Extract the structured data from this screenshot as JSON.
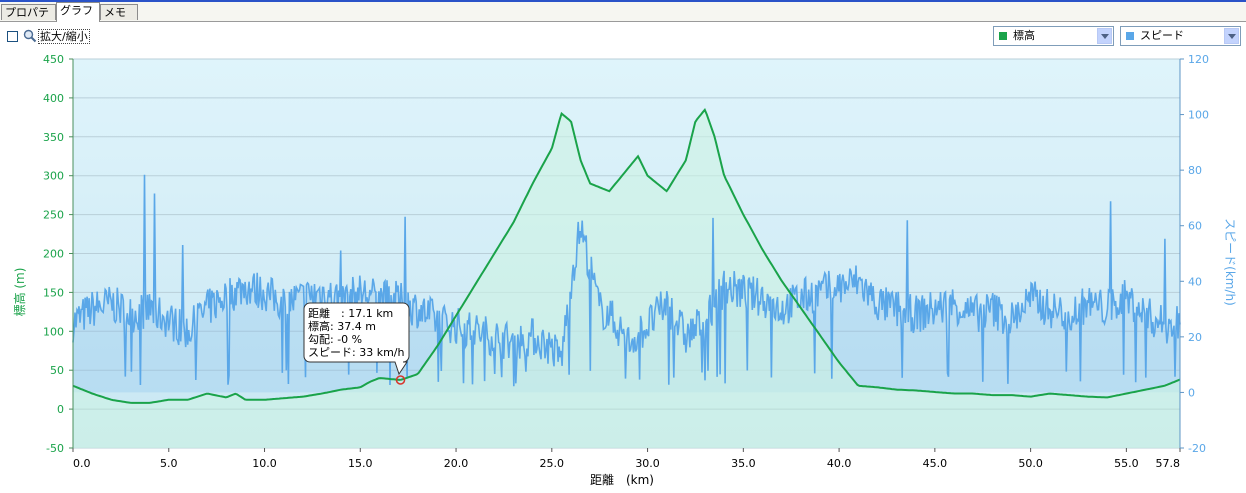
{
  "tabs": [
    {
      "label": "プロパティ",
      "active": false
    },
    {
      "label": "グラフ",
      "active": true
    },
    {
      "label": "メモ",
      "active": false
    }
  ],
  "toolbar": {
    "zoom_checkbox_checked": false,
    "zoom_label": "拡大/縮小",
    "left_select": {
      "value": "標高",
      "color": "#1aa34a"
    },
    "right_select": {
      "value": "スピード",
      "color": "#5aa7e8"
    }
  },
  "tooltip": {
    "line1": "距離　: 17.1 km",
    "line2": "標高: 37.4 m",
    "line3": "勾配: -0 %",
    "line4": "スピード: 33 km/h"
  },
  "chart_data": {
    "type": "line",
    "xlabel": "距離　(km)",
    "ylabel_left": "標高 (m)",
    "ylabel_right": "スピード(km/h)",
    "xlim": [
      0,
      57.8
    ],
    "ylim_left": [
      -50,
      450
    ],
    "ylim_right": [
      -20,
      120
    ],
    "x_ticks": [
      "0.0",
      "5.0",
      "10.0",
      "15.0",
      "20.0",
      "25.0",
      "30.0",
      "35.0",
      "40.0",
      "45.0",
      "50.0",
      "55.0",
      "57.8"
    ],
    "y_left_ticks": [
      "-50",
      "0",
      "50",
      "100",
      "150",
      "200",
      "250",
      "300",
      "350",
      "400",
      "450"
    ],
    "y_right_ticks": [
      "-20",
      "0",
      "20",
      "40",
      "60",
      "80",
      "100",
      "120"
    ],
    "grid": true,
    "series": [
      {
        "name": "標高",
        "axis": "left",
        "color": "#1aa34a",
        "x": [
          0,
          1,
          2,
          3,
          4,
          5,
          6,
          7,
          8,
          8.5,
          9,
          10,
          11,
          12,
          13,
          14,
          15,
          15.5,
          16,
          17.1,
          18,
          19,
          20,
          21,
          22,
          23,
          24,
          25,
          25.5,
          26,
          26.5,
          27,
          28,
          29,
          29.5,
          30,
          31,
          32,
          32.5,
          33,
          33.5,
          34,
          35,
          36,
          37,
          38,
          39,
          40,
          41,
          42,
          43,
          44,
          45,
          46,
          47,
          48,
          49,
          50,
          51,
          52,
          53,
          54,
          55,
          56,
          57,
          57.8
        ],
        "values": [
          30,
          20,
          12,
          8,
          8,
          12,
          12,
          20,
          15,
          20,
          12,
          12,
          14,
          16,
          20,
          25,
          28,
          35,
          40,
          37.4,
          45,
          80,
          120,
          160,
          200,
          240,
          290,
          335,
          380,
          370,
          320,
          290,
          280,
          310,
          325,
          300,
          280,
          320,
          370,
          385,
          350,
          300,
          250,
          205,
          165,
          130,
          95,
          60,
          30,
          28,
          25,
          24,
          22,
          20,
          20,
          18,
          18,
          16,
          20,
          18,
          16,
          15,
          20,
          25,
          30,
          38
        ]
      },
      {
        "name": "スピード",
        "axis": "right",
        "color": "#5aa7e8",
        "x": [
          0,
          1,
          2,
          3,
          4,
          5,
          6,
          7,
          8,
          9,
          10,
          11,
          12,
          13,
          14,
          15,
          16,
          17,
          18,
          19,
          20,
          21,
          22,
          23,
          24,
          25,
          25.5,
          26,
          26.5,
          27,
          27.5,
          28,
          29,
          30,
          31,
          32,
          33,
          34,
          35,
          36,
          37,
          38,
          39,
          40,
          41,
          42,
          43,
          44,
          45,
          46,
          47,
          48,
          49,
          50,
          51,
          52,
          53,
          54,
          55,
          56,
          57,
          57.8
        ],
        "values": [
          25,
          30,
          32,
          28,
          30,
          26,
          22,
          30,
          35,
          38,
          36,
          32,
          34,
          36,
          33,
          36,
          34,
          33,
          30,
          26,
          24,
          22,
          20,
          18,
          20,
          16,
          12,
          40,
          60,
          45,
          30,
          28,
          18,
          24,
          32,
          20,
          26,
          38,
          36,
          34,
          30,
          34,
          36,
          38,
          40,
          32,
          30,
          28,
          30,
          32,
          28,
          30,
          26,
          34,
          30,
          28,
          32,
          30,
          34,
          28,
          24,
          26
        ]
      }
    ]
  }
}
